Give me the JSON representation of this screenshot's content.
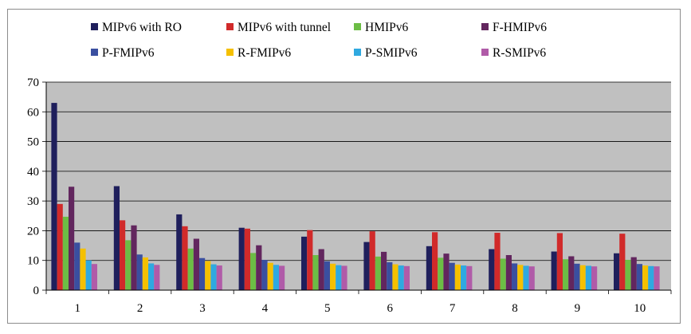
{
  "chart_data": {
    "type": "bar",
    "title": "",
    "xlabel": "",
    "ylabel": "",
    "categories": [
      "1",
      "2",
      "3",
      "4",
      "5",
      "6",
      "7",
      "8",
      "9",
      "10"
    ],
    "ylim": [
      0,
      70
    ],
    "yticks": [
      0,
      10,
      20,
      30,
      40,
      50,
      60,
      70
    ],
    "grid": "horizontal",
    "legend_position": "top",
    "series": [
      {
        "name": "MIPv6 with RO",
        "color": "#1f1f5c",
        "values": [
          63,
          35,
          25.5,
          21,
          18,
          16.2,
          14.8,
          13.8,
          13,
          12.4
        ]
      },
      {
        "name": "MIPv6 with tunnel",
        "color": "#d12a2a",
        "values": [
          29,
          23.5,
          21.5,
          20.7,
          20.2,
          19.8,
          19.5,
          19.3,
          19.2,
          19
        ]
      },
      {
        "name": "HMIPv6",
        "color": "#6cbd45",
        "values": [
          24.7,
          16.8,
          14,
          12.5,
          11.8,
          11.3,
          10.9,
          10.6,
          10.4,
          10.2
        ]
      },
      {
        "name": "F-HMIPv6",
        "color": "#62265e",
        "values": [
          34.8,
          21.8,
          17.3,
          15.1,
          13.8,
          12.9,
          12.3,
          11.8,
          11.4,
          11.1
        ]
      },
      {
        "name": "P-FMIPv6",
        "color": "#3a4fa0",
        "values": [
          16,
          12,
          10.8,
          10.2,
          9.7,
          9.4,
          9.2,
          9,
          8.9,
          8.8
        ]
      },
      {
        "name": "R-FMIPv6",
        "color": "#f5c000",
        "values": [
          14,
          11,
          9.8,
          9.2,
          8.9,
          8.7,
          8.6,
          8.5,
          8.4,
          8.3
        ]
      },
      {
        "name": "P-SMIPv6",
        "color": "#2fa9e0",
        "values": [
          10,
          9,
          8.7,
          8.5,
          8.4,
          8.3,
          8.3,
          8.2,
          8.2,
          8.1
        ]
      },
      {
        "name": "R-SMIPv6",
        "color": "#b05ba8",
        "values": [
          8.8,
          8.5,
          8.3,
          8.2,
          8.2,
          8.1,
          8.1,
          8,
          8,
          8
        ]
      }
    ]
  }
}
